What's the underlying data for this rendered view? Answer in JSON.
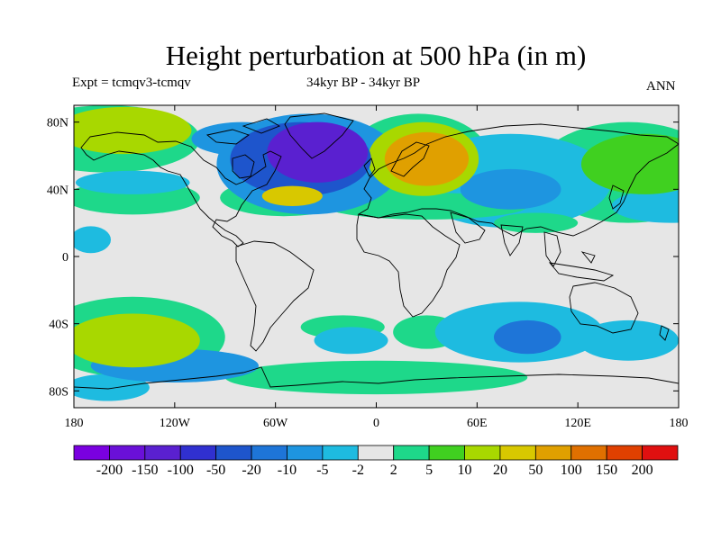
{
  "title": "Height perturbation at 500 hPa (in m)",
  "experiment": "Expt = tcmqv3-tcmqv",
  "period": "34kyr BP - 34kyr BP",
  "season": "ANN",
  "map": {
    "lat_ticks": [
      {
        "lat": 80,
        "label": "80N"
      },
      {
        "lat": 40,
        "label": "40N"
      },
      {
        "lat": 0,
        "label": "0"
      },
      {
        "lat": -40,
        "label": "40S"
      },
      {
        "lat": -80,
        "label": "80S"
      }
    ],
    "lon_ticks": [
      {
        "lon": -180,
        "label": "180"
      },
      {
        "lon": -120,
        "label": "120W"
      },
      {
        "lon": -60,
        "label": "60W"
      },
      {
        "lon": 0,
        "label": "0"
      },
      {
        "lon": 60,
        "label": "60E"
      },
      {
        "lon": 120,
        "label": "120E"
      },
      {
        "lon": 180,
        "label": "180"
      }
    ],
    "background_color": "#e6e6e6",
    "anomalies": [
      {
        "lon": -35,
        "lat": 62,
        "rlon": 30,
        "rlat": 18,
        "level": -6
      },
      {
        "lon": -45,
        "lat": 58,
        "rlon": 42,
        "rlat": 22,
        "level": -4
      },
      {
        "lon": -40,
        "lat": 55,
        "rlon": 55,
        "rlat": 30,
        "level": -2
      },
      {
        "lon": 30,
        "lat": 58,
        "rlon": 25,
        "rlat": 16,
        "level": 5
      },
      {
        "lon": 28,
        "lat": 58,
        "rlon": 33,
        "rlat": 22,
        "level": 3
      },
      {
        "lon": 25,
        "lat": 57,
        "rlon": 43,
        "rlat": 28,
        "level": 1
      },
      {
        "lon": -150,
        "lat": 75,
        "rlon": 40,
        "rlat": 14,
        "level": 3
      },
      {
        "lon": -160,
        "lat": 70,
        "rlon": 55,
        "rlat": 20,
        "level": 1
      },
      {
        "lon": -50,
        "lat": 36,
        "rlon": 18,
        "rlat": 6,
        "level": 4
      },
      {
        "lon": -55,
        "lat": 35,
        "rlon": 38,
        "rlat": 11,
        "level": 1
      },
      {
        "lon": -145,
        "lat": 35,
        "rlon": 40,
        "rlat": 10,
        "level": 1
      },
      {
        "lon": -145,
        "lat": 44,
        "rlon": 34,
        "rlat": 7,
        "level": -1
      },
      {
        "lon": 160,
        "lat": 55,
        "rlon": 38,
        "rlat": 18,
        "level": 2
      },
      {
        "lon": 150,
        "lat": 50,
        "rlon": 55,
        "rlat": 30,
        "level": 1
      },
      {
        "lon": 175,
        "lat": 30,
        "rlon": 35,
        "rlat": 10,
        "level": -1
      },
      {
        "lon": 80,
        "lat": 45,
        "rlon": 60,
        "rlat": 28,
        "level": -1
      },
      {
        "lon": 80,
        "lat": 40,
        "rlon": 30,
        "rlat": 12,
        "level": -2
      },
      {
        "lon": 30,
        "lat": 30,
        "rlon": 60,
        "rlat": 8,
        "level": 1
      },
      {
        "lon": 95,
        "lat": 20,
        "rlon": 25,
        "rlat": 6,
        "level": 1
      },
      {
        "lon": -145,
        "lat": -50,
        "rlon": 40,
        "rlat": 16,
        "level": 3
      },
      {
        "lon": -145,
        "lat": -48,
        "rlon": 55,
        "rlat": 24,
        "level": 1
      },
      {
        "lon": -120,
        "lat": -65,
        "rlon": 50,
        "rlat": 10,
        "level": -2
      },
      {
        "lon": -160,
        "lat": -78,
        "rlon": 25,
        "rlat": 8,
        "level": -1
      },
      {
        "lon": -20,
        "lat": -42,
        "rlon": 25,
        "rlat": 7,
        "level": 1
      },
      {
        "lon": -15,
        "lat": -50,
        "rlon": 22,
        "rlat": 8,
        "level": -1
      },
      {
        "lon": 30,
        "lat": -45,
        "rlon": 20,
        "rlat": 10,
        "level": 1
      },
      {
        "lon": 90,
        "lat": -48,
        "rlon": 20,
        "rlat": 10,
        "level": -3
      },
      {
        "lon": 85,
        "lat": -45,
        "rlon": 50,
        "rlat": 18,
        "level": -1
      },
      {
        "lon": 150,
        "lat": -50,
        "rlon": 30,
        "rlat": 12,
        "level": -1
      },
      {
        "lon": 0,
        "lat": -72,
        "rlon": 90,
        "rlat": 10,
        "level": 1
      },
      {
        "lon": -170,
        "lat": 10,
        "rlon": 12,
        "rlat": 8,
        "level": -1
      },
      {
        "lon": -80,
        "lat": 70,
        "rlon": 30,
        "rlat": 10,
        "level": -2
      }
    ]
  },
  "colorbar": {
    "colors": [
      "#7a00e0",
      "#6a10d8",
      "#5a20d0",
      "#3030d0",
      "#1e55cc",
      "#1e75d8",
      "#1e95e0",
      "#1ebbe0",
      "#e6e6e6",
      "#1ed88a",
      "#40d020",
      "#a8d800",
      "#d8c800",
      "#e0a000",
      "#e07000",
      "#e04000",
      "#e01010"
    ],
    "labels": [
      "-200",
      "-150",
      "-100",
      "-50",
      "-20",
      "-10",
      "-5",
      "-2",
      "2",
      "5",
      "10",
      "20",
      "50",
      "100",
      "150",
      "200"
    ]
  }
}
